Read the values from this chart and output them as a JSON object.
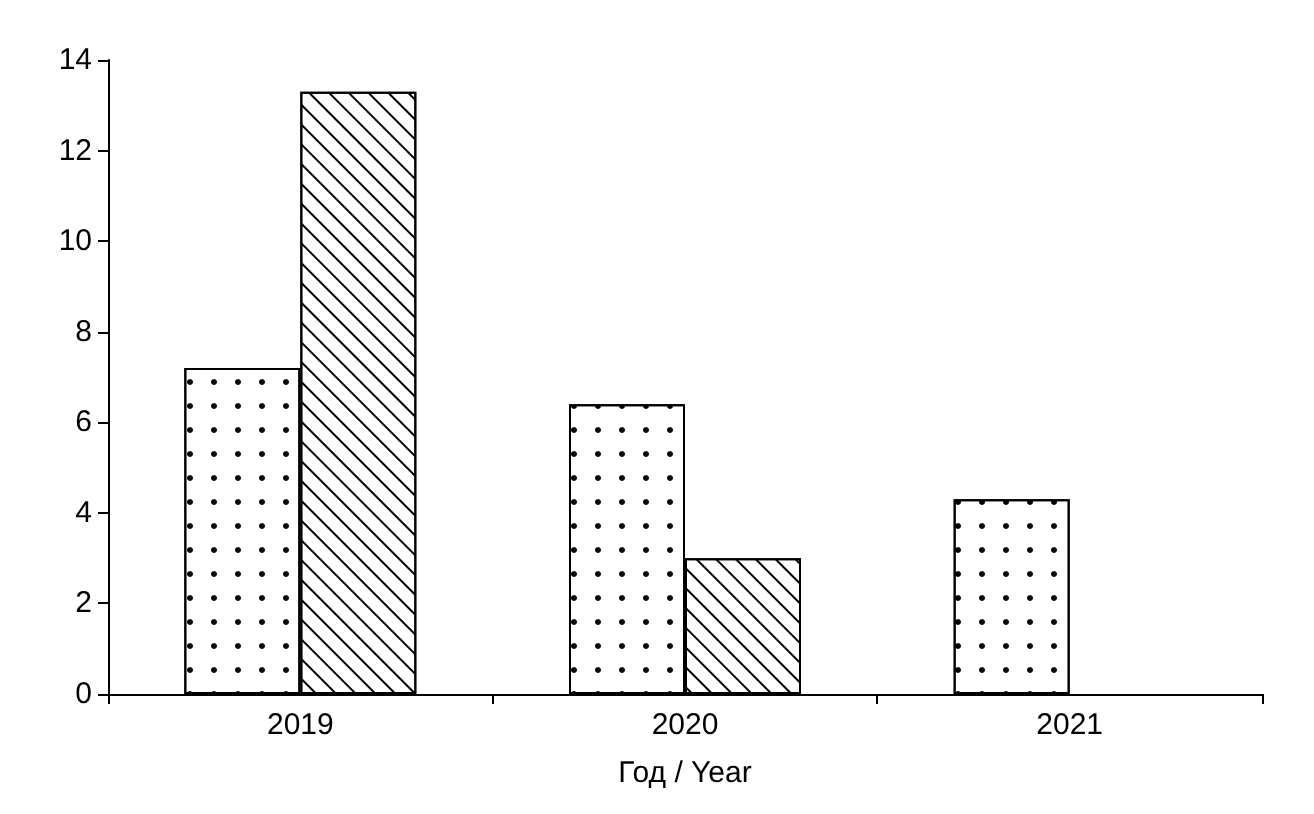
{
  "chart_data": {
    "type": "bar",
    "xlabel": "Год / Year",
    "categories": [
      "2019",
      "2020",
      "2021"
    ],
    "series": [
      {
        "color": "#ffffff",
        "values": [
          7.2,
          6.4,
          4.3
        ]
      },
      {
        "color": "#ffffff",
        "values": [
          13.3,
          3.0,
          null
        ]
      }
    ],
    "ylim": [
      0,
      14
    ],
    "yticks": [
      0,
      2,
      4,
      6,
      8,
      10,
      12,
      14
    ],
    "grid": false
  }
}
